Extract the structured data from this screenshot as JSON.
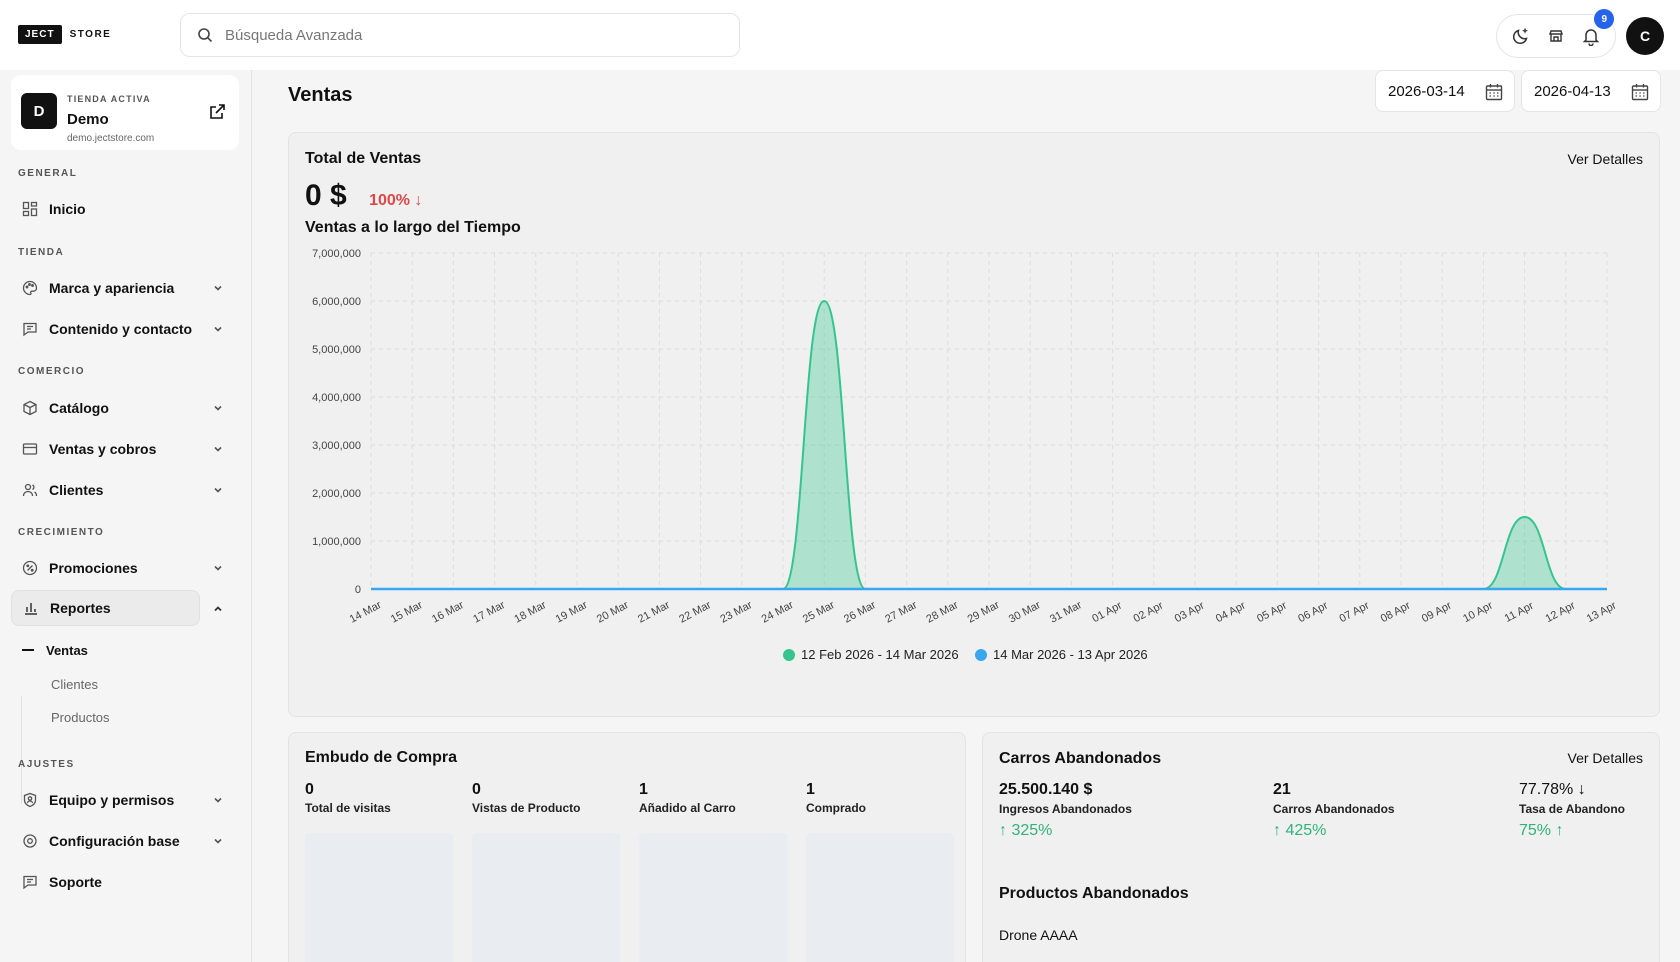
{
  "brand": {
    "box": "JECT",
    "text": "STORE"
  },
  "search": {
    "placeholder": "Búsqueda Avanzada"
  },
  "topbar": {
    "notifications_count": "9",
    "avatar_initial": "C"
  },
  "store": {
    "initial": "D",
    "kicker": "TIENDA ACTIVA",
    "name": "Demo",
    "domain": "demo.jectstore.com"
  },
  "sidebar": {
    "sections": {
      "general": "GENERAL",
      "tienda": "TIENDA",
      "comercio": "COMERCIO",
      "crecimiento": "CRECIMIENTO",
      "ajustes": "AJUSTES"
    },
    "items": {
      "inicio": "Inicio",
      "marca": "Marca y apariencia",
      "contenido": "Contenido y contacto",
      "catalogo": "Catálogo",
      "ventas": "Ventas y cobros",
      "clientes": "Clientes",
      "promociones": "Promociones",
      "reportes": "Reportes",
      "equipo": "Equipo y permisos",
      "config": "Configuración base",
      "soporte": "Soporte"
    },
    "reportes_sub": {
      "ventas": "Ventas",
      "clientes": "Clientes",
      "productos": "Productos"
    }
  },
  "page": {
    "title": "Ventas",
    "date_from": "2026-03-14",
    "date_to": "2026-04-13"
  },
  "total_card": {
    "title": "Total de Ventas",
    "details": "Ver Detalles",
    "total": "0 $",
    "change": "100% ↓",
    "subtitle": "Ventas a lo largo del Tiempo"
  },
  "chart_data": {
    "type": "area",
    "title": "Ventas a lo largo del Tiempo",
    "x": [
      "14 Mar",
      "15 Mar",
      "16 Mar",
      "17 Mar",
      "18 Mar",
      "19 Mar",
      "20 Mar",
      "21 Mar",
      "22 Mar",
      "23 Mar",
      "24 Mar",
      "25 Mar",
      "26 Mar",
      "27 Mar",
      "28 Mar",
      "29 Mar",
      "30 Mar",
      "31 Mar",
      "01 Apr",
      "02 Apr",
      "03 Apr",
      "04 Apr",
      "05 Apr",
      "06 Apr",
      "07 Apr",
      "08 Apr",
      "09 Apr",
      "10 Apr",
      "11 Apr",
      "12 Apr",
      "13 Apr"
    ],
    "y_ticks": [
      "0",
      "1,000,000",
      "2,000,000",
      "3,000,000",
      "4,000,000",
      "5,000,000",
      "6,000,000",
      "7,000,000"
    ],
    "ylim": [
      0,
      7000000
    ],
    "grid": true,
    "legend_position": "bottom",
    "series": [
      {
        "name": "12 Feb 2026 - 14 Mar 2026",
        "color": "#34c58f",
        "values": [
          0,
          0,
          0,
          0,
          0,
          0,
          0,
          0,
          0,
          0,
          0,
          6000000,
          0,
          0,
          0,
          0,
          0,
          0,
          0,
          0,
          0,
          0,
          0,
          0,
          0,
          0,
          0,
          0,
          1500000,
          0,
          0
        ]
      },
      {
        "name": "14 Mar 2026 - 13 Apr 2026",
        "color": "#3aa6ee",
        "values": [
          0,
          0,
          0,
          0,
          0,
          0,
          0,
          0,
          0,
          0,
          0,
          0,
          0,
          0,
          0,
          0,
          0,
          0,
          0,
          0,
          0,
          0,
          0,
          0,
          0,
          0,
          0,
          0,
          0,
          0,
          0
        ]
      }
    ]
  },
  "funnel": {
    "title": "Embudo de Compra",
    "cols": [
      {
        "value": "0",
        "label": "Total de visitas"
      },
      {
        "value": "0",
        "label": "Vistas de Producto"
      },
      {
        "value": "1",
        "label": "Añadido al Carro"
      },
      {
        "value": "1",
        "label": "Comprado"
      }
    ]
  },
  "abandoned": {
    "title": "Carros Abandonados",
    "details": "Ver Detalles",
    "revenue": {
      "value": "25.500.140 $",
      "label": "Ingresos Abandonados",
      "change": "↑ 325%"
    },
    "carts": {
      "value": "21",
      "label": "Carros Abandonados",
      "change": "↑ 425%"
    },
    "rate": {
      "value": "77.78% ↓",
      "label": "Tasa de Abandono",
      "change": "75% ↑"
    },
    "products_title": "Productos Abandonados",
    "products": [
      "Drone AAAA"
    ]
  }
}
